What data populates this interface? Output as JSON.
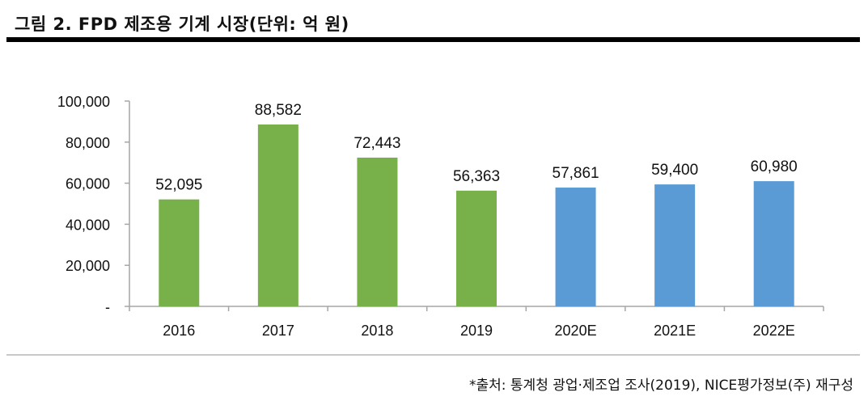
{
  "header": {
    "title": "그림 2. FPD 제조용 기계 시장(단위: 억 원)"
  },
  "footer": {
    "source": "*출처: 통계청 광업·제조업 조사(2019), NICE평가정보(주) 재구성"
  },
  "colors": {
    "actual": "#78b04a",
    "forecast": "#5b9bd5",
    "axis": "#a6a6a6",
    "title_rule": "#000000",
    "bottom_rule": "#c8c8c8"
  },
  "chart_data": {
    "type": "bar",
    "title": "그림 2. FPD 제조용 기계 시장(단위: 억 원)",
    "categories": [
      "2016",
      "2017",
      "2018",
      "2019",
      "2020E",
      "2021E",
      "2022E"
    ],
    "values": [
      52095,
      88582,
      72443,
      56363,
      57861,
      59400,
      60980
    ],
    "data_labels": [
      "52,095",
      "88,582",
      "72,443",
      "56,363",
      "57,861",
      "59,400",
      "60,980"
    ],
    "series_kind": [
      "actual",
      "actual",
      "actual",
      "actual",
      "forecast",
      "forecast",
      "forecast"
    ],
    "yticks": [
      0,
      20000,
      40000,
      60000,
      80000,
      100000
    ],
    "ytick_labels": [
      "-",
      "20,000",
      "40,000",
      "60,000",
      "80,000",
      "100,000"
    ],
    "ylim": [
      0,
      100000
    ],
    "xlabel": "",
    "ylabel": "",
    "grid": false,
    "legend": "none"
  }
}
